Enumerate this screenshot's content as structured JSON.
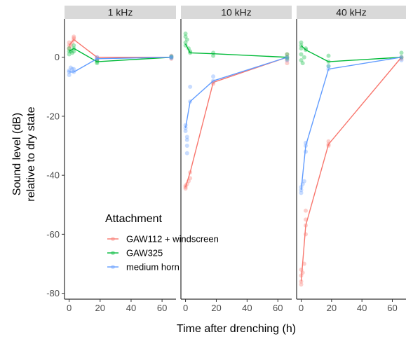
{
  "chart_data": {
    "type": "line",
    "xlabel": "Time after drenching (h)",
    "ylabel_line1": "Sound level (dB)",
    "ylabel_line2": "relative to dry state",
    "xlim": [
      -3,
      69
    ],
    "ylim": [
      -82,
      13
    ],
    "x_ticks": [
      0,
      20,
      40,
      60
    ],
    "y_ticks": [
      0,
      -20,
      -40,
      -60,
      -80
    ],
    "legend": {
      "title": "Attachment",
      "placement": "bottom-left of first panel"
    },
    "colors": {
      "GAW112 + windscreen": "#F8766D",
      "GAW325": "#00BA38",
      "medium horn": "#619CFF"
    },
    "panels": [
      {
        "label": "1 kHz",
        "series": [
          {
            "name": "GAW112 + windscreen",
            "x": [
              0,
              3,
              18,
              66
            ],
            "y": [
              4,
              6,
              0,
              0
            ],
            "points": [
              [
                0,
                3
              ],
              [
                0,
                4
              ],
              [
                0,
                5
              ],
              [
                1,
                4
              ],
              [
                2,
                5
              ],
              [
                3,
                6
              ],
              [
                3,
                7
              ],
              [
                3,
                6.5
              ],
              [
                18,
                0
              ],
              [
                18,
                -0.5
              ],
              [
                18,
                -1
              ],
              [
                66,
                0
              ],
              [
                66,
                0.5
              ],
              [
                66,
                -0.5
              ]
            ]
          },
          {
            "name": "GAW325",
            "x": [
              0,
              3,
              18,
              66
            ],
            "y": [
              2,
              3,
              -1.5,
              0
            ],
            "points": [
              [
                0,
                1
              ],
              [
                0,
                2
              ],
              [
                0,
                3
              ],
              [
                1,
                2
              ],
              [
                2,
                1.5
              ],
              [
                3,
                3
              ],
              [
                3,
                2
              ],
              [
                3,
                4
              ],
              [
                18,
                -1.5
              ],
              [
                18,
                -1
              ],
              [
                18,
                -2
              ],
              [
                66,
                0
              ],
              [
                66,
                0.3
              ]
            ]
          },
          {
            "name": "medium horn",
            "x": [
              0,
              3,
              18,
              66
            ],
            "y": [
              -5,
              -5,
              -0.5,
              0
            ],
            "points": [
              [
                0,
                -6
              ],
              [
                0,
                -5
              ],
              [
                0,
                -4.5
              ],
              [
                1,
                -3.5
              ],
              [
                2,
                -4
              ],
              [
                3,
                -5
              ],
              [
                3,
                -4
              ],
              [
                18,
                -0.5
              ],
              [
                18,
                0
              ],
              [
                66,
                0
              ],
              [
                66,
                -0.3
              ],
              [
                66,
                0.3
              ]
            ]
          }
        ]
      },
      {
        "label": "10 kHz",
        "series": [
          {
            "name": "GAW112 + windscreen",
            "x": [
              0,
              3,
              18,
              66
            ],
            "y": [
              -44,
              -39,
              -8.5,
              0
            ],
            "points": [
              [
                0,
                -44
              ],
              [
                0,
                -44.5
              ],
              [
                0,
                -43.5
              ],
              [
                1,
                -43
              ],
              [
                2,
                -42
              ],
              [
                3,
                -39
              ],
              [
                3,
                -41
              ],
              [
                18,
                -8.5
              ],
              [
                18,
                -9
              ],
              [
                66,
                0
              ],
              [
                66,
                -1
              ],
              [
                66,
                -2
              ],
              [
                66,
                1
              ]
            ]
          },
          {
            "name": "GAW325",
            "x": [
              0,
              3,
              18,
              66
            ],
            "y": [
              4.5,
              1.5,
              1.2,
              0
            ],
            "points": [
              [
                0,
                8
              ],
              [
                0,
                7
              ],
              [
                0,
                5
              ],
              [
                0,
                4
              ],
              [
                1,
                6
              ],
              [
                2,
                3
              ],
              [
                3,
                1.5
              ],
              [
                3,
                2
              ],
              [
                18,
                1.5
              ],
              [
                18,
                0.5
              ],
              [
                66,
                0
              ],
              [
                66,
                1
              ],
              [
                66,
                -0.5
              ]
            ]
          },
          {
            "name": "medium horn",
            "x": [
              0,
              3,
              18,
              66
            ],
            "y": [
              -24,
              -15,
              -8,
              0
            ],
            "points": [
              [
                0,
                -24
              ],
              [
                0,
                -25
              ],
              [
                0,
                -23
              ],
              [
                1,
                -27
              ],
              [
                1,
                -28
              ],
              [
                1,
                -30
              ],
              [
                1,
                -32.5
              ],
              [
                3,
                -15
              ],
              [
                3,
                -10
              ],
              [
                18,
                -8
              ],
              [
                18,
                -6.5
              ],
              [
                66,
                0
              ],
              [
                66,
                -1
              ]
            ]
          }
        ]
      },
      {
        "label": "40 kHz",
        "series": [
          {
            "name": "GAW112 + windscreen",
            "x": [
              0,
              3,
              18,
              66
            ],
            "y": [
              -76,
              -57,
              -29.5,
              0
            ],
            "points": [
              [
                0,
                -72
              ],
              [
                0,
                -74
              ],
              [
                0,
                -76
              ],
              [
                0,
                -77
              ],
              [
                1,
                -73
              ],
              [
                2,
                -70
              ],
              [
                3,
                -57
              ],
              [
                3,
                -52
              ],
              [
                3,
                -55
              ],
              [
                3,
                -60
              ],
              [
                18,
                -29.5
              ],
              [
                18,
                -28.5
              ],
              [
                18,
                -30
              ],
              [
                66,
                0
              ],
              [
                66,
                -0.5
              ]
            ]
          },
          {
            "name": "GAW325",
            "x": [
              0,
              3,
              18,
              66
            ],
            "y": [
              4,
              2.5,
              -1.5,
              0
            ],
            "points": [
              [
                0,
                4
              ],
              [
                0,
                5
              ],
              [
                0,
                3
              ],
              [
                0,
                1
              ],
              [
                0,
                -1
              ],
              [
                1,
                -2
              ],
              [
                2,
                0
              ],
              [
                3,
                2.5
              ],
              [
                3,
                3
              ],
              [
                18,
                -1.5
              ],
              [
                18,
                0.5
              ],
              [
                18,
                -3
              ],
              [
                66,
                0
              ],
              [
                66,
                1.5
              ]
            ]
          },
          {
            "name": "medium horn",
            "x": [
              0,
              3,
              18,
              66
            ],
            "y": [
              -45,
              -30,
              -4,
              0
            ],
            "points": [
              [
                0,
                -45
              ],
              [
                0,
                -44
              ],
              [
                0,
                -46
              ],
              [
                1,
                -43
              ],
              [
                2,
                -42
              ],
              [
                3,
                -30
              ],
              [
                3,
                -29
              ],
              [
                3,
                -32
              ],
              [
                18,
                -4
              ],
              [
                18,
                -3
              ],
              [
                66,
                0
              ],
              [
                66,
                -1
              ]
            ]
          }
        ]
      }
    ]
  }
}
